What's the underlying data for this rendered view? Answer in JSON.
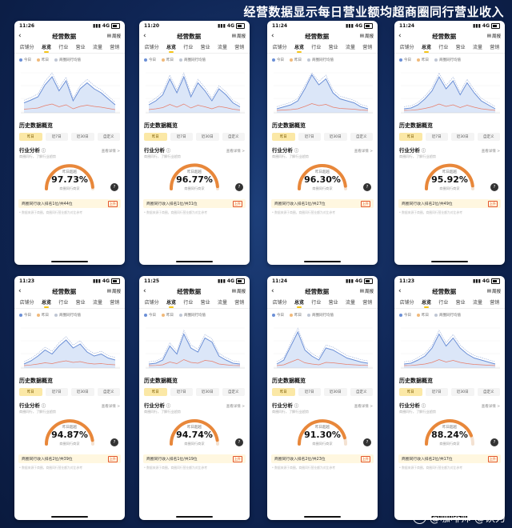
{
  "page_title": "经营数据显示每日营业额均超商圈同行营业收入",
  "watermark": "@咖啡师 @饮力",
  "common": {
    "nav_title": "经营数据",
    "weekly_label": "周报",
    "tabs": [
      "店铺分",
      "总览",
      "行业",
      "营业",
      "流量",
      "营销"
    ],
    "legend": [
      "今日",
      "昨日",
      "商圈同行均值"
    ],
    "history_title": "历史数据概览",
    "periods": [
      "昨日",
      "近7日",
      "近30日",
      "自定义"
    ],
    "industry_title": "行业分析",
    "industry_more": "查看详情 >",
    "industry_sub": "商圈同行，了解行业趋势",
    "gauge_label": "昨日超越",
    "gauge_sub": "商圈同行商家",
    "footer_note": "* 数据来源于商圈，商圈同行营业额为对比参考",
    "signal_label": "4G",
    "help_icon": "?",
    "rank_tag": "上升"
  },
  "colors": {
    "accent": "#f5c518",
    "today": "#6b8fd6",
    "yesterday": "#f0b97a",
    "peer": "#bfc6d4",
    "gauge": "#e8873a",
    "background": "#0f2554"
  },
  "phones": [
    {
      "time": "11:26",
      "percent": "97.73%",
      "rank": "商圈同行收入排名1位/共44位",
      "gauge_fraction": 0.9773
    },
    {
      "time": "11:20",
      "percent": "96.77%",
      "rank": "商圈同行收入排名1位/共31位",
      "gauge_fraction": 0.9677
    },
    {
      "time": "11:24",
      "percent": "96.30%",
      "rank": "商圈同行收入排名1位/共27位",
      "gauge_fraction": 0.963
    },
    {
      "time": "11:24",
      "percent": "95.92%",
      "rank": "商圈同行收入排名2位/共49位",
      "gauge_fraction": 0.9592
    },
    {
      "time": "11:23",
      "percent": "94.87%",
      "rank": "商圈同行收入排名2位/共39位",
      "gauge_fraction": 0.9487
    },
    {
      "time": "11:25",
      "percent": "94.74%",
      "rank": "商圈同行收入排名1位/共19位",
      "gauge_fraction": 0.9474
    },
    {
      "time": "11:24",
      "percent": "91.30%",
      "rank": "商圈同行收入排名2位/共23位",
      "gauge_fraction": 0.913
    },
    {
      "time": "11:23",
      "percent": "88.24%",
      "rank": "商圈同行收入排名2位/共17位",
      "gauge_fraction": 0.8824
    }
  ]
}
